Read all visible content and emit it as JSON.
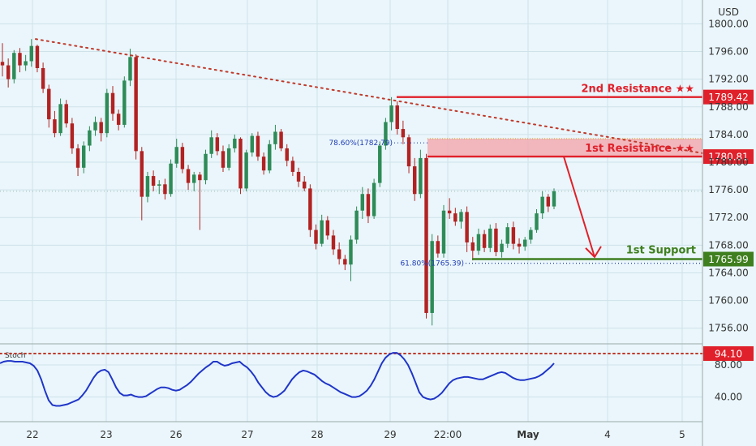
{
  "header": {
    "currency": "USD"
  },
  "colors": {
    "background": "#eaf6fb",
    "up": "#2e8b57",
    "down": "#b22222",
    "resistance": "#e0202a",
    "support": "#3f7f1f",
    "trend": "#c0392b",
    "stoch_line": "#2035c8",
    "fib": "#1f3bb3",
    "grid": "#cfe2ea"
  },
  "chart_data": [
    {
      "type": "candlestick",
      "title": "",
      "ylabel": "",
      "ylim": [
        1753.5,
        1803.5
      ],
      "y_ticks": [
        "1756.00",
        "1760.00",
        "1764.00",
        "1768.00",
        "1772.00",
        "1776.00",
        "1780.00",
        "1784.00",
        "1788.00",
        "1792.00",
        "1796.00",
        "1800.00"
      ],
      "x_ticks": [
        "22",
        "23",
        "26",
        "27",
        "28",
        "29",
        "22:00",
        "May",
        "4",
        "5"
      ],
      "grid": true,
      "legend": "none",
      "candles": [
        [
          1794.5,
          1797.2,
          1792.4,
          1794.0
        ],
        [
          1794.0,
          1795.0,
          1790.8,
          1792.0
        ],
        [
          1792.0,
          1796.2,
          1791.4,
          1795.8
        ],
        [
          1795.8,
          1796.5,
          1793.0,
          1794.0
        ],
        [
          1794.0,
          1795.5,
          1793.2,
          1794.6
        ],
        [
          1794.6,
          1797.8,
          1793.8,
          1796.8
        ],
        [
          1796.8,
          1797.0,
          1793.0,
          1793.6
        ],
        [
          1793.6,
          1794.4,
          1790.0,
          1790.6
        ],
        [
          1790.6,
          1791.2,
          1785.0,
          1786.2
        ],
        [
          1786.2,
          1787.4,
          1783.6,
          1784.2
        ],
        [
          1784.2,
          1789.2,
          1783.8,
          1788.4
        ],
        [
          1788.4,
          1789.0,
          1785.0,
          1785.6
        ],
        [
          1785.6,
          1786.4,
          1781.2,
          1782.0
        ],
        [
          1782.0,
          1782.6,
          1778.0,
          1779.2
        ],
        [
          1779.2,
          1783.0,
          1778.4,
          1782.4
        ],
        [
          1782.4,
          1785.2,
          1781.6,
          1784.6
        ],
        [
          1784.6,
          1786.6,
          1783.8,
          1785.8
        ],
        [
          1785.8,
          1786.4,
          1783.0,
          1784.2
        ],
        [
          1784.2,
          1790.6,
          1783.6,
          1790.0
        ],
        [
          1790.0,
          1791.0,
          1786.0,
          1787.0
        ],
        [
          1787.0,
          1787.6,
          1784.6,
          1785.4
        ],
        [
          1785.4,
          1792.4,
          1785.0,
          1791.8
        ],
        [
          1791.8,
          1796.4,
          1791.0,
          1795.2
        ],
        [
          1795.2,
          1795.6,
          1780.4,
          1781.6
        ],
        [
          1781.6,
          1782.2,
          1771.6,
          1775.0
        ],
        [
          1775.0,
          1778.6,
          1774.2,
          1778.0
        ],
        [
          1778.0,
          1778.8,
          1775.8,
          1776.6
        ],
        [
          1776.6,
          1777.4,
          1775.4,
          1776.8
        ],
        [
          1776.8,
          1777.6,
          1774.6,
          1775.4
        ],
        [
          1775.4,
          1780.4,
          1775.0,
          1779.8
        ],
        [
          1779.8,
          1783.4,
          1779.2,
          1782.2
        ],
        [
          1782.2,
          1782.8,
          1778.4,
          1779.0
        ],
        [
          1779.0,
          1779.6,
          1776.0,
          1777.0
        ],
        [
          1777.0,
          1778.6,
          1775.8,
          1778.2
        ],
        [
          1778.2,
          1778.6,
          1770.2,
          1777.4
        ],
        [
          1777.4,
          1781.8,
          1776.8,
          1781.2
        ],
        [
          1781.2,
          1784.6,
          1780.6,
          1783.6
        ],
        [
          1783.6,
          1784.2,
          1781.0,
          1781.6
        ],
        [
          1781.6,
          1782.4,
          1778.6,
          1779.2
        ],
        [
          1779.2,
          1782.6,
          1778.8,
          1782.0
        ],
        [
          1782.0,
          1784.0,
          1781.4,
          1783.4
        ],
        [
          1783.4,
          1783.6,
          1775.4,
          1776.2
        ],
        [
          1776.2,
          1781.8,
          1775.8,
          1781.4
        ],
        [
          1781.4,
          1784.2,
          1780.8,
          1783.8
        ],
        [
          1783.8,
          1784.4,
          1780.2,
          1780.8
        ],
        [
          1780.8,
          1781.4,
          1778.2,
          1778.8
        ],
        [
          1778.8,
          1783.2,
          1778.4,
          1782.6
        ],
        [
          1782.6,
          1785.4,
          1781.8,
          1784.4
        ],
        [
          1784.4,
          1784.8,
          1781.6,
          1782.0
        ],
        [
          1782.0,
          1782.6,
          1779.4,
          1780.2
        ],
        [
          1780.2,
          1780.8,
          1778.0,
          1778.6
        ],
        [
          1778.6,
          1779.2,
          1776.4,
          1777.2
        ],
        [
          1777.2,
          1778.0,
          1775.8,
          1776.2
        ],
        [
          1776.2,
          1776.8,
          1769.2,
          1770.2
        ],
        [
          1770.2,
          1771.0,
          1767.4,
          1768.2
        ],
        [
          1768.2,
          1772.4,
          1767.8,
          1771.6
        ],
        [
          1771.6,
          1772.2,
          1768.8,
          1769.4
        ],
        [
          1769.4,
          1770.2,
          1766.6,
          1767.4
        ],
        [
          1767.4,
          1768.4,
          1765.2,
          1766.0
        ],
        [
          1766.0,
          1766.6,
          1764.4,
          1765.2
        ],
        [
          1765.2,
          1769.4,
          1762.8,
          1768.8
        ],
        [
          1768.8,
          1773.6,
          1768.2,
          1773.0
        ],
        [
          1773.0,
          1776.4,
          1771.8,
          1775.4
        ],
        [
          1775.4,
          1776.2,
          1771.2,
          1772.2
        ],
        [
          1772.2,
          1777.6,
          1771.8,
          1777.0
        ],
        [
          1777.0,
          1783.0,
          1776.4,
          1782.4
        ],
        [
          1782.4,
          1786.4,
          1781.8,
          1785.8
        ],
        [
          1785.8,
          1789.4,
          1784.6,
          1788.2
        ],
        [
          1788.2,
          1788.8,
          1784.0,
          1784.8
        ],
        [
          1784.8,
          1786.0,
          1782.6,
          1783.6
        ],
        [
          1783.6,
          1784.0,
          1778.4,
          1779.4
        ],
        [
          1779.4,
          1780.6,
          1774.4,
          1775.4
        ],
        [
          1775.4,
          1781.8,
          1774.8,
          1780.6
        ],
        [
          1780.6,
          1781.2,
          1757.4,
          1758.2
        ],
        [
          1758.2,
          1769.6,
          1756.4,
          1768.6
        ],
        [
          1768.6,
          1769.4,
          1766.2,
          1766.8
        ],
        [
          1766.8,
          1773.8,
          1766.2,
          1773.0
        ],
        [
          1773.0,
          1774.8,
          1771.8,
          1772.6
        ],
        [
          1772.6,
          1773.4,
          1770.8,
          1771.4
        ],
        [
          1771.4,
          1773.2,
          1770.4,
          1772.8
        ],
        [
          1772.8,
          1773.6,
          1767.0,
          1768.4
        ],
        [
          1768.4,
          1769.2,
          1765.8,
          1767.2
        ],
        [
          1767.2,
          1770.4,
          1766.6,
          1769.6
        ],
        [
          1769.6,
          1770.2,
          1767.0,
          1767.6
        ],
        [
          1767.6,
          1771.0,
          1767.0,
          1770.4
        ],
        [
          1770.4,
          1771.2,
          1766.4,
          1767.0
        ],
        [
          1767.0,
          1768.8,
          1766.2,
          1768.2
        ],
        [
          1768.2,
          1771.2,
          1767.6,
          1770.6
        ],
        [
          1770.6,
          1771.4,
          1767.4,
          1768.2
        ],
        [
          1768.2,
          1769.0,
          1766.8,
          1767.8
        ],
        [
          1767.8,
          1769.2,
          1767.2,
          1768.8
        ],
        [
          1768.8,
          1770.6,
          1768.2,
          1770.2
        ],
        [
          1770.2,
          1773.2,
          1769.8,
          1772.6
        ],
        [
          1772.6,
          1775.8,
          1771.8,
          1775.0
        ],
        [
          1775.0,
          1775.4,
          1772.8,
          1773.6
        ],
        [
          1773.6,
          1776.2,
          1773.2,
          1775.8
        ]
      ],
      "levels": [
        {
          "name": "2nd Resistance ★★",
          "value": "1789.42",
          "y": 1789.42
        },
        {
          "name": "1st Resistance ★★",
          "value": "1780.81",
          "y": 1780.81
        },
        {
          "name": "1st Support",
          "value": "1765.99",
          "y": 1765.99
        }
      ],
      "zone": {
        "y_from": 1780.81,
        "y_to": 1783.4
      },
      "fibonacci": [
        {
          "label": "78.60%(1782.79)",
          "y": 1782.79
        },
        {
          "label": "61.80%(1765.39)",
          "y": 1765.39
        }
      ],
      "trendline": {
        "from": 1797.8,
        "to": 1781.3
      }
    },
    {
      "type": "line",
      "title": "Stoch",
      "ylim": [
        18,
        100
      ],
      "y_ticks": [
        "40.00",
        "80.00"
      ],
      "level": {
        "value": "94.10",
        "y": 94.1
      },
      "series": [
        {
          "values": [
            82,
            84,
            85,
            85,
            84,
            84,
            84,
            83,
            82,
            79,
            73,
            62,
            48,
            36,
            30,
            29,
            29,
            30,
            31,
            33,
            35,
            37,
            42,
            48,
            56,
            64,
            70,
            73,
            74,
            71,
            62,
            52,
            45,
            42,
            42,
            43,
            41,
            40,
            40,
            41,
            44,
            47,
            50,
            52,
            52,
            51,
            49,
            48,
            49,
            52,
            55,
            59,
            64,
            69,
            73,
            77,
            80,
            84,
            84,
            81,
            79,
            80,
            82,
            83,
            84,
            80,
            77,
            72,
            66,
            58,
            52,
            46,
            42,
            40,
            41,
            44,
            48,
            55,
            62,
            67,
            71,
            73,
            72,
            70,
            68,
            64,
            60,
            57,
            55,
            52,
            49,
            46,
            44,
            42,
            40,
            40,
            41,
            44,
            48,
            54,
            62,
            72,
            82,
            89,
            93,
            95,
            95,
            92,
            87,
            80,
            70,
            58,
            46,
            40,
            38,
            37,
            38,
            41,
            45,
            51,
            57,
            61,
            63,
            64,
            65,
            65,
            64,
            63,
            62,
            62,
            64,
            66,
            68,
            70,
            71,
            70,
            67,
            64,
            62,
            61,
            61,
            62,
            63,
            64,
            66,
            69,
            73,
            77,
            82
          ]
        }
      ]
    }
  ]
}
